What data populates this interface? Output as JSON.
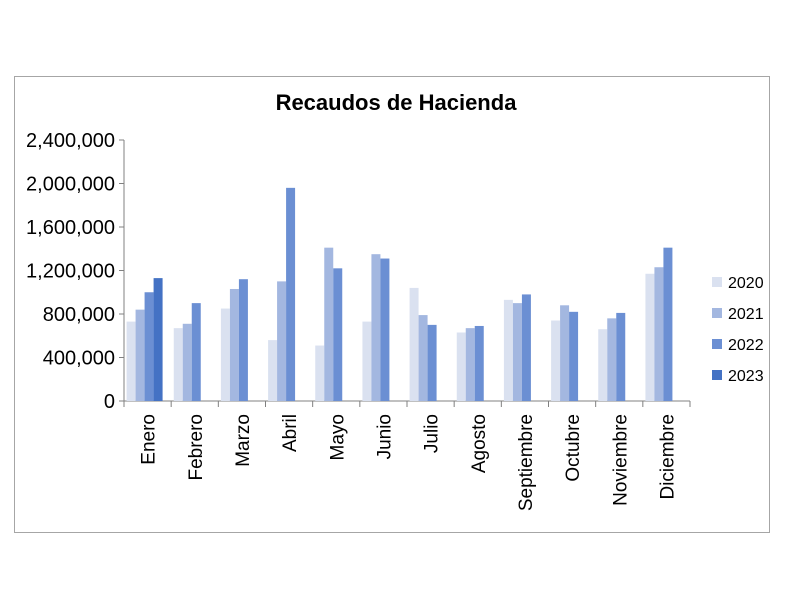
{
  "chart_data": {
    "type": "bar",
    "title": "Recaudos de Hacienda",
    "categories": [
      "Enero",
      "Febrero",
      "Marzo",
      "Abril",
      "Mayo",
      "Junio",
      "Julio",
      "Agosto",
      "Septiembre",
      "Octubre",
      "Noviembre",
      "Diciembre"
    ],
    "series": [
      {
        "name": "2020",
        "color": "#dae1f0",
        "values": [
          730000,
          670000,
          850000,
          560000,
          510000,
          730000,
          1040000,
          630000,
          930000,
          740000,
          660000,
          1170000
        ]
      },
      {
        "name": "2021",
        "color": "#a3b7e0",
        "values": [
          840000,
          710000,
          1030000,
          1100000,
          1410000,
          1350000,
          790000,
          670000,
          900000,
          880000,
          760000,
          1230000
        ]
      },
      {
        "name": "2022",
        "color": "#6b8fd3",
        "values": [
          1000000,
          900000,
          1120000,
          1960000,
          1220000,
          1310000,
          700000,
          690000,
          980000,
          820000,
          810000,
          1410000
        ]
      },
      {
        "name": "2023",
        "color": "#4472c4",
        "values": [
          1130000,
          null,
          null,
          null,
          null,
          null,
          null,
          null,
          null,
          null,
          null,
          null
        ]
      }
    ],
    "yticks": [
      "0",
      "400,000",
      "800,000",
      "1,200,000",
      "1,600,000",
      "2,000,000",
      "2,400,000"
    ],
    "ylim": [
      0,
      2400000
    ],
    "xlabel": "",
    "ylabel": "",
    "legend_position": "right",
    "grid": false
  }
}
